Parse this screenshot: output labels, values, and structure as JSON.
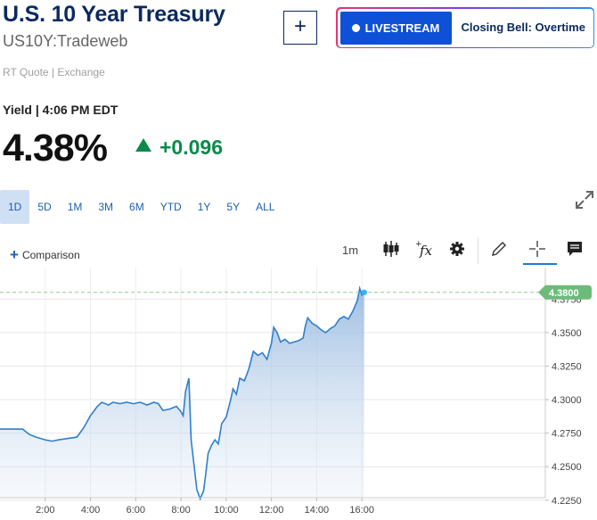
{
  "header": {
    "title": "U.S. 10 Year Treasury",
    "symbol": "US10Y:Tradeweb",
    "quote_source": "RT Quote | Exchange",
    "add_label": "+",
    "livestream_label": "LIVESTREAM",
    "show_name": "Closing Bell: Overtime"
  },
  "quote": {
    "yield_line": "Yield | 4:06 PM EDT",
    "price": "4.38%",
    "change": "+0.096",
    "direction": "up"
  },
  "colors": {
    "brand_navy": "#0a2a5e",
    "accent_blue": "#1f5fb0",
    "livestream_blue": "#0e51d6",
    "positive_green": "#0b8a4b",
    "badge_green": "#6dbb7a",
    "line_blue": "#2f7fcc"
  },
  "ranges": [
    {
      "label": "1D",
      "active": true
    },
    {
      "label": "5D",
      "active": false
    },
    {
      "label": "1M",
      "active": false
    },
    {
      "label": "3M",
      "active": false
    },
    {
      "label": "6M",
      "active": false
    },
    {
      "label": "YTD",
      "active": false
    },
    {
      "label": "1Y",
      "active": false
    },
    {
      "label": "5Y",
      "active": false
    },
    {
      "label": "ALL",
      "active": false
    }
  ],
  "toolbar": {
    "comparison_label": "Comparison",
    "interval": "1m",
    "icons": [
      "candlestick-icon",
      "function-icon",
      "gear-icon",
      "pencil-icon",
      "crosshair-icon",
      "comment-icon"
    ]
  },
  "chart_data": {
    "type": "area",
    "x_ticks": [
      "2:00",
      "4:00",
      "6:00",
      "8:00",
      "10:00",
      "12:00",
      "14:00",
      "16:00"
    ],
    "x_tick_hours": [
      2,
      4,
      6,
      8,
      10,
      12,
      14,
      16
    ],
    "y_ticks": [
      4.225,
      4.25,
      4.275,
      4.3,
      4.325,
      4.35,
      4.375
    ],
    "y_tick_labels": [
      "4.2250",
      "4.2500",
      "4.2750",
      "4.3000",
      "4.3250",
      "4.3500",
      "4.3750"
    ],
    "xlim": [
      0,
      16.15
    ],
    "ylim": [
      4.2222,
      4.3885
    ],
    "last_value": 4.38,
    "last_value_label": "4.3800",
    "points": [
      [
        0.0,
        4.278
      ],
      [
        0.5,
        4.278
      ],
      [
        1.0,
        4.278
      ],
      [
        1.3,
        4.274
      ],
      [
        1.6,
        4.272
      ],
      [
        2.0,
        4.27
      ],
      [
        2.3,
        4.269
      ],
      [
        2.6,
        4.27
      ],
      [
        3.0,
        4.271
      ],
      [
        3.4,
        4.272
      ],
      [
        3.7,
        4.279
      ],
      [
        4.0,
        4.288
      ],
      [
        4.3,
        4.295
      ],
      [
        4.5,
        4.298
      ],
      [
        4.8,
        4.296
      ],
      [
        5.0,
        4.298
      ],
      [
        5.3,
        4.297
      ],
      [
        5.6,
        4.298
      ],
      [
        5.9,
        4.297
      ],
      [
        6.2,
        4.298
      ],
      [
        6.5,
        4.296
      ],
      [
        6.8,
        4.298
      ],
      [
        7.0,
        4.297
      ],
      [
        7.2,
        4.292
      ],
      [
        7.5,
        4.293
      ],
      [
        7.8,
        4.295
      ],
      [
        8.0,
        4.291
      ],
      [
        8.1,
        4.288
      ],
      [
        8.2,
        4.306
      ],
      [
        8.35,
        4.316
      ],
      [
        8.45,
        4.27
      ],
      [
        8.55,
        4.255
      ],
      [
        8.7,
        4.233
      ],
      [
        8.85,
        4.226
      ],
      [
        9.0,
        4.232
      ],
      [
        9.1,
        4.245
      ],
      [
        9.2,
        4.26
      ],
      [
        9.35,
        4.266
      ],
      [
        9.5,
        4.27
      ],
      [
        9.65,
        4.267
      ],
      [
        9.8,
        4.282
      ],
      [
        10.0,
        4.287
      ],
      [
        10.2,
        4.3
      ],
      [
        10.3,
        4.308
      ],
      [
        10.45,
        4.304
      ],
      [
        10.6,
        4.316
      ],
      [
        10.8,
        4.314
      ],
      [
        11.0,
        4.323
      ],
      [
        11.2,
        4.336
      ],
      [
        11.4,
        4.333
      ],
      [
        11.6,
        4.335
      ],
      [
        11.8,
        4.33
      ],
      [
        12.0,
        4.342
      ],
      [
        12.1,
        4.354
      ],
      [
        12.25,
        4.35
      ],
      [
        12.4,
        4.343
      ],
      [
        12.6,
        4.345
      ],
      [
        12.8,
        4.342
      ],
      [
        13.0,
        4.343
      ],
      [
        13.2,
        4.344
      ],
      [
        13.4,
        4.346
      ],
      [
        13.5,
        4.355
      ],
      [
        13.6,
        4.361
      ],
      [
        13.8,
        4.357
      ],
      [
        14.0,
        4.355
      ],
      [
        14.2,
        4.352
      ],
      [
        14.4,
        4.35
      ],
      [
        14.6,
        4.353
      ],
      [
        14.8,
        4.355
      ],
      [
        15.0,
        4.36
      ],
      [
        15.2,
        4.362
      ],
      [
        15.4,
        4.36
      ],
      [
        15.6,
        4.366
      ],
      [
        15.8,
        4.374
      ],
      [
        15.9,
        4.383
      ],
      [
        16.0,
        4.378
      ],
      [
        16.1,
        4.38
      ]
    ]
  }
}
